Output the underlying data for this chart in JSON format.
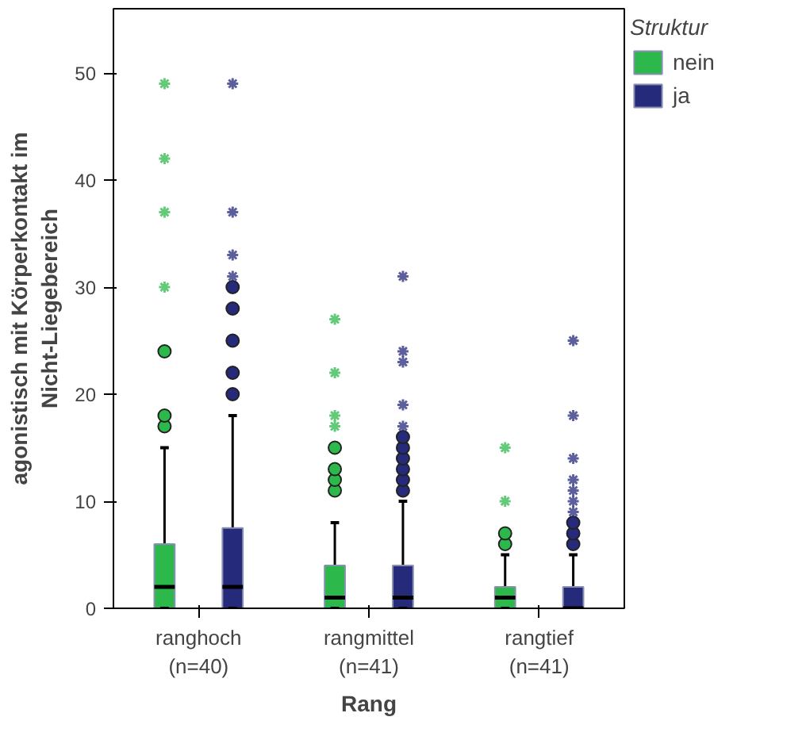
{
  "chart_data": {
    "type": "box",
    "xlabel": "Rang",
    "ylabel": "agonistisch mit Körperkontakt im\nNicht-Liegebereich",
    "legend_title": "Struktur",
    "categories": [
      "ranghoch\n(n=40)",
      "rangmittel\n(n=41)",
      "rangtief\n(n=41)"
    ],
    "series": [
      {
        "name": "nein",
        "color": "#2db84b",
        "boxes": [
          {
            "low": 0,
            "q1": 0,
            "median": 2,
            "q3": 6,
            "high": 15,
            "outliers": [
              17,
              18,
              24,
              30,
              37,
              42,
              49
            ]
          },
          {
            "low": 0,
            "q1": 0,
            "median": 1,
            "q3": 4,
            "high": 8,
            "outliers": [
              11,
              12,
              13,
              15,
              17,
              18,
              22,
              27
            ]
          },
          {
            "low": 0,
            "q1": 0,
            "median": 1,
            "q3": 2,
            "high": 5,
            "outliers": [
              6,
              7,
              10,
              15
            ]
          }
        ]
      },
      {
        "name": "ja",
        "color": "#262a7a",
        "boxes": [
          {
            "low": 0,
            "q1": 0,
            "median": 2,
            "q3": 7.5,
            "high": 18,
            "outliers": [
              20,
              22,
              25,
              28,
              30,
              31,
              33,
              37,
              49
            ]
          },
          {
            "low": 0,
            "q1": 0,
            "median": 1,
            "q3": 4,
            "high": 10,
            "outliers": [
              11,
              12,
              13,
              14,
              15,
              16,
              17,
              19,
              23,
              24,
              31
            ]
          },
          {
            "low": 0,
            "q1": 0,
            "median": 0,
            "q3": 2,
            "high": 5,
            "outliers": [
              6,
              7,
              8,
              9,
              10,
              11,
              12,
              14,
              18,
              25
            ]
          }
        ]
      }
    ],
    "ylim": [
      0,
      56
    ],
    "yticks": [
      0,
      10,
      20,
      30,
      40,
      50
    ],
    "grid": false,
    "legend": "top right"
  }
}
